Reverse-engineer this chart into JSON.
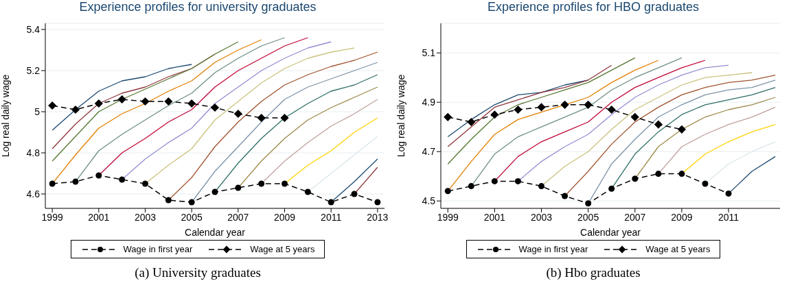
{
  "chart_data": [
    {
      "type": "line",
      "title": "Experience profiles for university graduates",
      "xlabel": "Calendar year",
      "ylabel": "Log real daily wage",
      "xlim": [
        1998.7,
        2013.3
      ],
      "xticks": [
        1999,
        2001,
        2003,
        2005,
        2007,
        2009,
        2011,
        2013
      ],
      "ylim": [
        4.53,
        5.43
      ],
      "yticks": [
        4.6,
        4.8,
        5,
        5.2,
        5.4
      ],
      "grid": "y",
      "legend": "bottom",
      "marker": "none",
      "annotations": [
        "(a) University graduates"
      ],
      "series": [
        {
          "color": "#1a476f",
          "x": [
            1999,
            2000,
            2001,
            2002,
            2003,
            2004,
            2005
          ],
          "values": [
            4.91,
            5.01,
            5.1,
            5.15,
            5.17,
            5.21,
            5.23
          ]
        },
        {
          "color": "#90353b",
          "x": [
            1999,
            2000,
            2001,
            2002,
            2003,
            2004,
            2005,
            2006
          ],
          "values": [
            4.82,
            4.94,
            5.04,
            5.09,
            5.12,
            5.17,
            5.21,
            5.28
          ]
        },
        {
          "color": "#55752f",
          "x": [
            1999,
            2000,
            2001,
            2002,
            2003,
            2004,
            2005,
            2006,
            2007
          ],
          "values": [
            4.76,
            4.88,
            5,
            5.06,
            5.11,
            5.16,
            5.21,
            5.28,
            5.34
          ]
        },
        {
          "color": "#e37e00",
          "x": [
            1999,
            2000,
            2001,
            2002,
            2003,
            2004,
            2005,
            2006,
            2007,
            2008
          ],
          "values": [
            4.65,
            4.79,
            4.92,
            4.99,
            5.04,
            5.1,
            5.15,
            5.24,
            5.3,
            5.35
          ]
        },
        {
          "color": "#6e8e84",
          "x": [
            2000,
            2001,
            2002,
            2003,
            2004,
            2005,
            2006,
            2007,
            2008,
            2009
          ],
          "values": [
            4.66,
            4.81,
            4.89,
            4.96,
            5.03,
            5.09,
            5.19,
            5.26,
            5.32,
            5.36
          ]
        },
        {
          "color": "#c10534",
          "x": [
            2001,
            2002,
            2003,
            2004,
            2005,
            2006,
            2007,
            2008,
            2009,
            2010
          ],
          "values": [
            4.69,
            4.8,
            4.87,
            4.95,
            5.01,
            5.12,
            5.2,
            5.26,
            5.32,
            5.36
          ]
        },
        {
          "color": "#938dd2",
          "x": [
            2002,
            2003,
            2004,
            2005,
            2006,
            2007,
            2008,
            2009,
            2010,
            2011
          ],
          "values": [
            4.67,
            4.77,
            4.85,
            4.92,
            5.04,
            5.12,
            5.2,
            5.26,
            5.31,
            5.34
          ]
        },
        {
          "color": "#cac27e",
          "x": [
            2003,
            2004,
            2005,
            2006,
            2007,
            2008,
            2009,
            2010,
            2011,
            2012
          ],
          "values": [
            4.65,
            4.74,
            4.82,
            4.96,
            5.05,
            5.14,
            5.21,
            5.26,
            5.29,
            5.31
          ]
        },
        {
          "color": "#a0522d",
          "x": [
            2004,
            2005,
            2006,
            2007,
            2008,
            2009,
            2010,
            2011,
            2012,
            2013
          ],
          "values": [
            4.57,
            4.68,
            4.83,
            4.95,
            5.05,
            5.13,
            5.18,
            5.22,
            5.25,
            5.29
          ]
        },
        {
          "color": "#7b92a8",
          "x": [
            2005,
            2006,
            2007,
            2008,
            2009,
            2010,
            2011,
            2012,
            2013
          ],
          "values": [
            4.56,
            4.71,
            4.83,
            4.95,
            5.06,
            5.12,
            5.16,
            5.2,
            5.24
          ]
        },
        {
          "color": "#2d6d66",
          "x": [
            2006,
            2007,
            2008,
            2009,
            2010,
            2011,
            2012,
            2013
          ],
          "values": [
            4.61,
            4.75,
            4.87,
            4.97,
            5.04,
            5.1,
            5.13,
            5.18
          ]
        },
        {
          "color": "#9c8847",
          "x": [
            2007,
            2008,
            2009,
            2010,
            2011,
            2012,
            2013
          ],
          "values": [
            4.63,
            4.76,
            4.87,
            4.96,
            5.02,
            5.07,
            5.12
          ]
        },
        {
          "color": "#bfa19c",
          "x": [
            2008,
            2009,
            2010,
            2011,
            2012,
            2013
          ],
          "values": [
            4.65,
            4.76,
            4.85,
            4.93,
            4.99,
            5.06
          ]
        },
        {
          "color": "#ffd200",
          "x": [
            2009,
            2010,
            2011,
            2012,
            2013
          ],
          "values": [
            4.65,
            4.74,
            4.81,
            4.9,
            4.97
          ]
        },
        {
          "color": "#d9e6eb",
          "x": [
            2010,
            2011,
            2012,
            2013
          ],
          "values": [
            4.61,
            4.7,
            4.79,
            4.88
          ]
        },
        {
          "color": "#1a476f",
          "x": [
            2011,
            2012,
            2013
          ],
          "values": [
            4.56,
            4.66,
            4.77
          ]
        },
        {
          "color": "#90353b",
          "x": [
            2012,
            2013
          ],
          "values": [
            4.6,
            4.73
          ]
        },
        {
          "name": "Wage in first year",
          "color": "#000000",
          "marker": "circle",
          "line_style": "dashed",
          "x": [
            1999,
            2000,
            2001,
            2002,
            2003,
            2004,
            2005,
            2006,
            2007,
            2008,
            2009,
            2010,
            2011,
            2012,
            2013
          ],
          "values": [
            4.65,
            4.66,
            4.69,
            4.67,
            4.65,
            4.57,
            4.56,
            4.61,
            4.63,
            4.65,
            4.65,
            4.61,
            4.56,
            4.6,
            4.56
          ]
        },
        {
          "name": "Wage at 5 years",
          "color": "#000000",
          "marker": "diamond",
          "line_style": "dashed",
          "x": [
            1999,
            2000,
            2001,
            2002,
            2003,
            2004,
            2005,
            2006,
            2007,
            2008,
            2009
          ],
          "values": [
            5.03,
            5.01,
            5.04,
            5.06,
            5.05,
            5.05,
            5.04,
            5.02,
            4.99,
            4.97,
            4.97
          ]
        }
      ]
    },
    {
      "type": "line",
      "title": "Experience profiles for HBO graduates",
      "xlabel": "Calendar year",
      "ylabel": "Log real daily wage",
      "xlim": [
        1998.7,
        2013.2
      ],
      "xticks": [
        1999,
        2001,
        2003,
        2005,
        2007,
        2009,
        2011
      ],
      "ylim": [
        4.47,
        5.22
      ],
      "yticks": [
        4.5,
        4.7,
        4.9,
        5.1
      ],
      "grid": "y",
      "legend": "bottom",
      "marker": "none",
      "annotations": [
        "(b) Hbo graduates"
      ],
      "series": [
        {
          "color": "#1a476f",
          "x": [
            1999,
            2000,
            2001,
            2002,
            2003,
            2004,
            2005
          ],
          "values": [
            4.76,
            4.83,
            4.89,
            4.93,
            4.94,
            4.97,
            4.99
          ]
        },
        {
          "color": "#90353b",
          "x": [
            1999,
            2000,
            2001,
            2002,
            2003,
            2004,
            2005,
            2006
          ],
          "values": [
            4.72,
            4.8,
            4.88,
            4.91,
            4.94,
            4.96,
            4.99,
            5.05
          ]
        },
        {
          "color": "#55752f",
          "x": [
            1999,
            2000,
            2001,
            2002,
            2003,
            2004,
            2005,
            2006,
            2007
          ],
          "values": [
            4.65,
            4.75,
            4.84,
            4.89,
            4.92,
            4.95,
            4.98,
            5.03,
            5.08
          ]
        },
        {
          "color": "#e37e00",
          "x": [
            1999,
            2000,
            2001,
            2002,
            2003,
            2004,
            2005,
            2006,
            2007,
            2008
          ],
          "values": [
            4.54,
            4.66,
            4.77,
            4.83,
            4.86,
            4.89,
            4.92,
            4.98,
            5.03,
            5.07
          ]
        },
        {
          "color": "#6e8e84",
          "x": [
            2000,
            2001,
            2002,
            2003,
            2004,
            2005,
            2006,
            2007,
            2008,
            2009
          ],
          "values": [
            4.56,
            4.69,
            4.76,
            4.8,
            4.84,
            4.88,
            4.95,
            5,
            5.04,
            5.08
          ]
        },
        {
          "color": "#c10534",
          "x": [
            2001,
            2002,
            2003,
            2004,
            2005,
            2006,
            2007,
            2008,
            2009,
            2010
          ],
          "values": [
            4.58,
            4.68,
            4.74,
            4.78,
            4.82,
            4.9,
            4.96,
            5,
            5.04,
            5.07
          ]
        },
        {
          "color": "#938dd2",
          "x": [
            2002,
            2003,
            2004,
            2005,
            2006,
            2007,
            2008,
            2009,
            2010,
            2011
          ],
          "values": [
            4.58,
            4.66,
            4.72,
            4.77,
            4.85,
            4.92,
            4.97,
            5.01,
            5.04,
            5.05
          ]
        },
        {
          "color": "#cac27e",
          "x": [
            2003,
            2004,
            2005,
            2006,
            2007,
            2008,
            2009,
            2010,
            2011,
            2012
          ],
          "values": [
            4.56,
            4.64,
            4.7,
            4.79,
            4.87,
            4.92,
            4.97,
            5,
            5.01,
            5.02
          ]
        },
        {
          "color": "#a0522d",
          "x": [
            2004,
            2005,
            2006,
            2007,
            2008,
            2009,
            2010,
            2011,
            2012,
            2013
          ],
          "values": [
            4.52,
            4.62,
            4.73,
            4.82,
            4.88,
            4.93,
            4.96,
            4.98,
            4.99,
            5.01
          ]
        },
        {
          "color": "#7b92a8",
          "x": [
            2005,
            2006,
            2007,
            2008,
            2009,
            2010,
            2011,
            2012,
            2013
          ],
          "values": [
            4.49,
            4.65,
            4.75,
            4.84,
            4.89,
            4.93,
            4.95,
            4.96,
            4.99
          ]
        },
        {
          "color": "#2d6d66",
          "x": [
            2006,
            2007,
            2008,
            2009,
            2010,
            2011,
            2012,
            2013
          ],
          "values": [
            4.55,
            4.69,
            4.78,
            4.85,
            4.89,
            4.91,
            4.93,
            4.96
          ]
        },
        {
          "color": "#9c8847",
          "x": [
            2007,
            2008,
            2009,
            2010,
            2011,
            2012,
            2013
          ],
          "values": [
            4.59,
            4.72,
            4.79,
            4.84,
            4.87,
            4.89,
            4.92
          ]
        },
        {
          "color": "#bfa19c",
          "x": [
            2008,
            2009,
            2010,
            2011,
            2012,
            2013
          ],
          "values": [
            4.61,
            4.72,
            4.77,
            4.81,
            4.84,
            4.88
          ]
        },
        {
          "color": "#ffd200",
          "x": [
            2009,
            2010,
            2011,
            2012,
            2013
          ],
          "values": [
            4.61,
            4.69,
            4.74,
            4.78,
            4.81
          ]
        },
        {
          "color": "#d9e6eb",
          "x": [
            2010,
            2011,
            2012,
            2013
          ],
          "values": [
            4.57,
            4.65,
            4.7,
            4.74
          ]
        },
        {
          "color": "#1a476f",
          "x": [
            2011,
            2012,
            2013
          ],
          "values": [
            4.53,
            4.62,
            4.68
          ]
        },
        {
          "name": "Wage in first year",
          "color": "#000000",
          "marker": "circle",
          "line_style": "dashed",
          "x": [
            1999,
            2000,
            2001,
            2002,
            2003,
            2004,
            2005,
            2006,
            2007,
            2008,
            2009,
            2010,
            2011
          ],
          "values": [
            4.54,
            4.56,
            4.58,
            4.58,
            4.56,
            4.52,
            4.49,
            4.55,
            4.59,
            4.61,
            4.61,
            4.57,
            4.53
          ]
        },
        {
          "name": "Wage at 5 years",
          "color": "#000000",
          "marker": "diamond",
          "line_style": "dashed",
          "x": [
            1999,
            2000,
            2001,
            2002,
            2003,
            2004,
            2005,
            2006,
            2007,
            2008,
            2009
          ],
          "values": [
            4.84,
            4.82,
            4.85,
            4.87,
            4.88,
            4.89,
            4.89,
            4.87,
            4.84,
            4.81,
            4.79
          ]
        }
      ]
    }
  ]
}
